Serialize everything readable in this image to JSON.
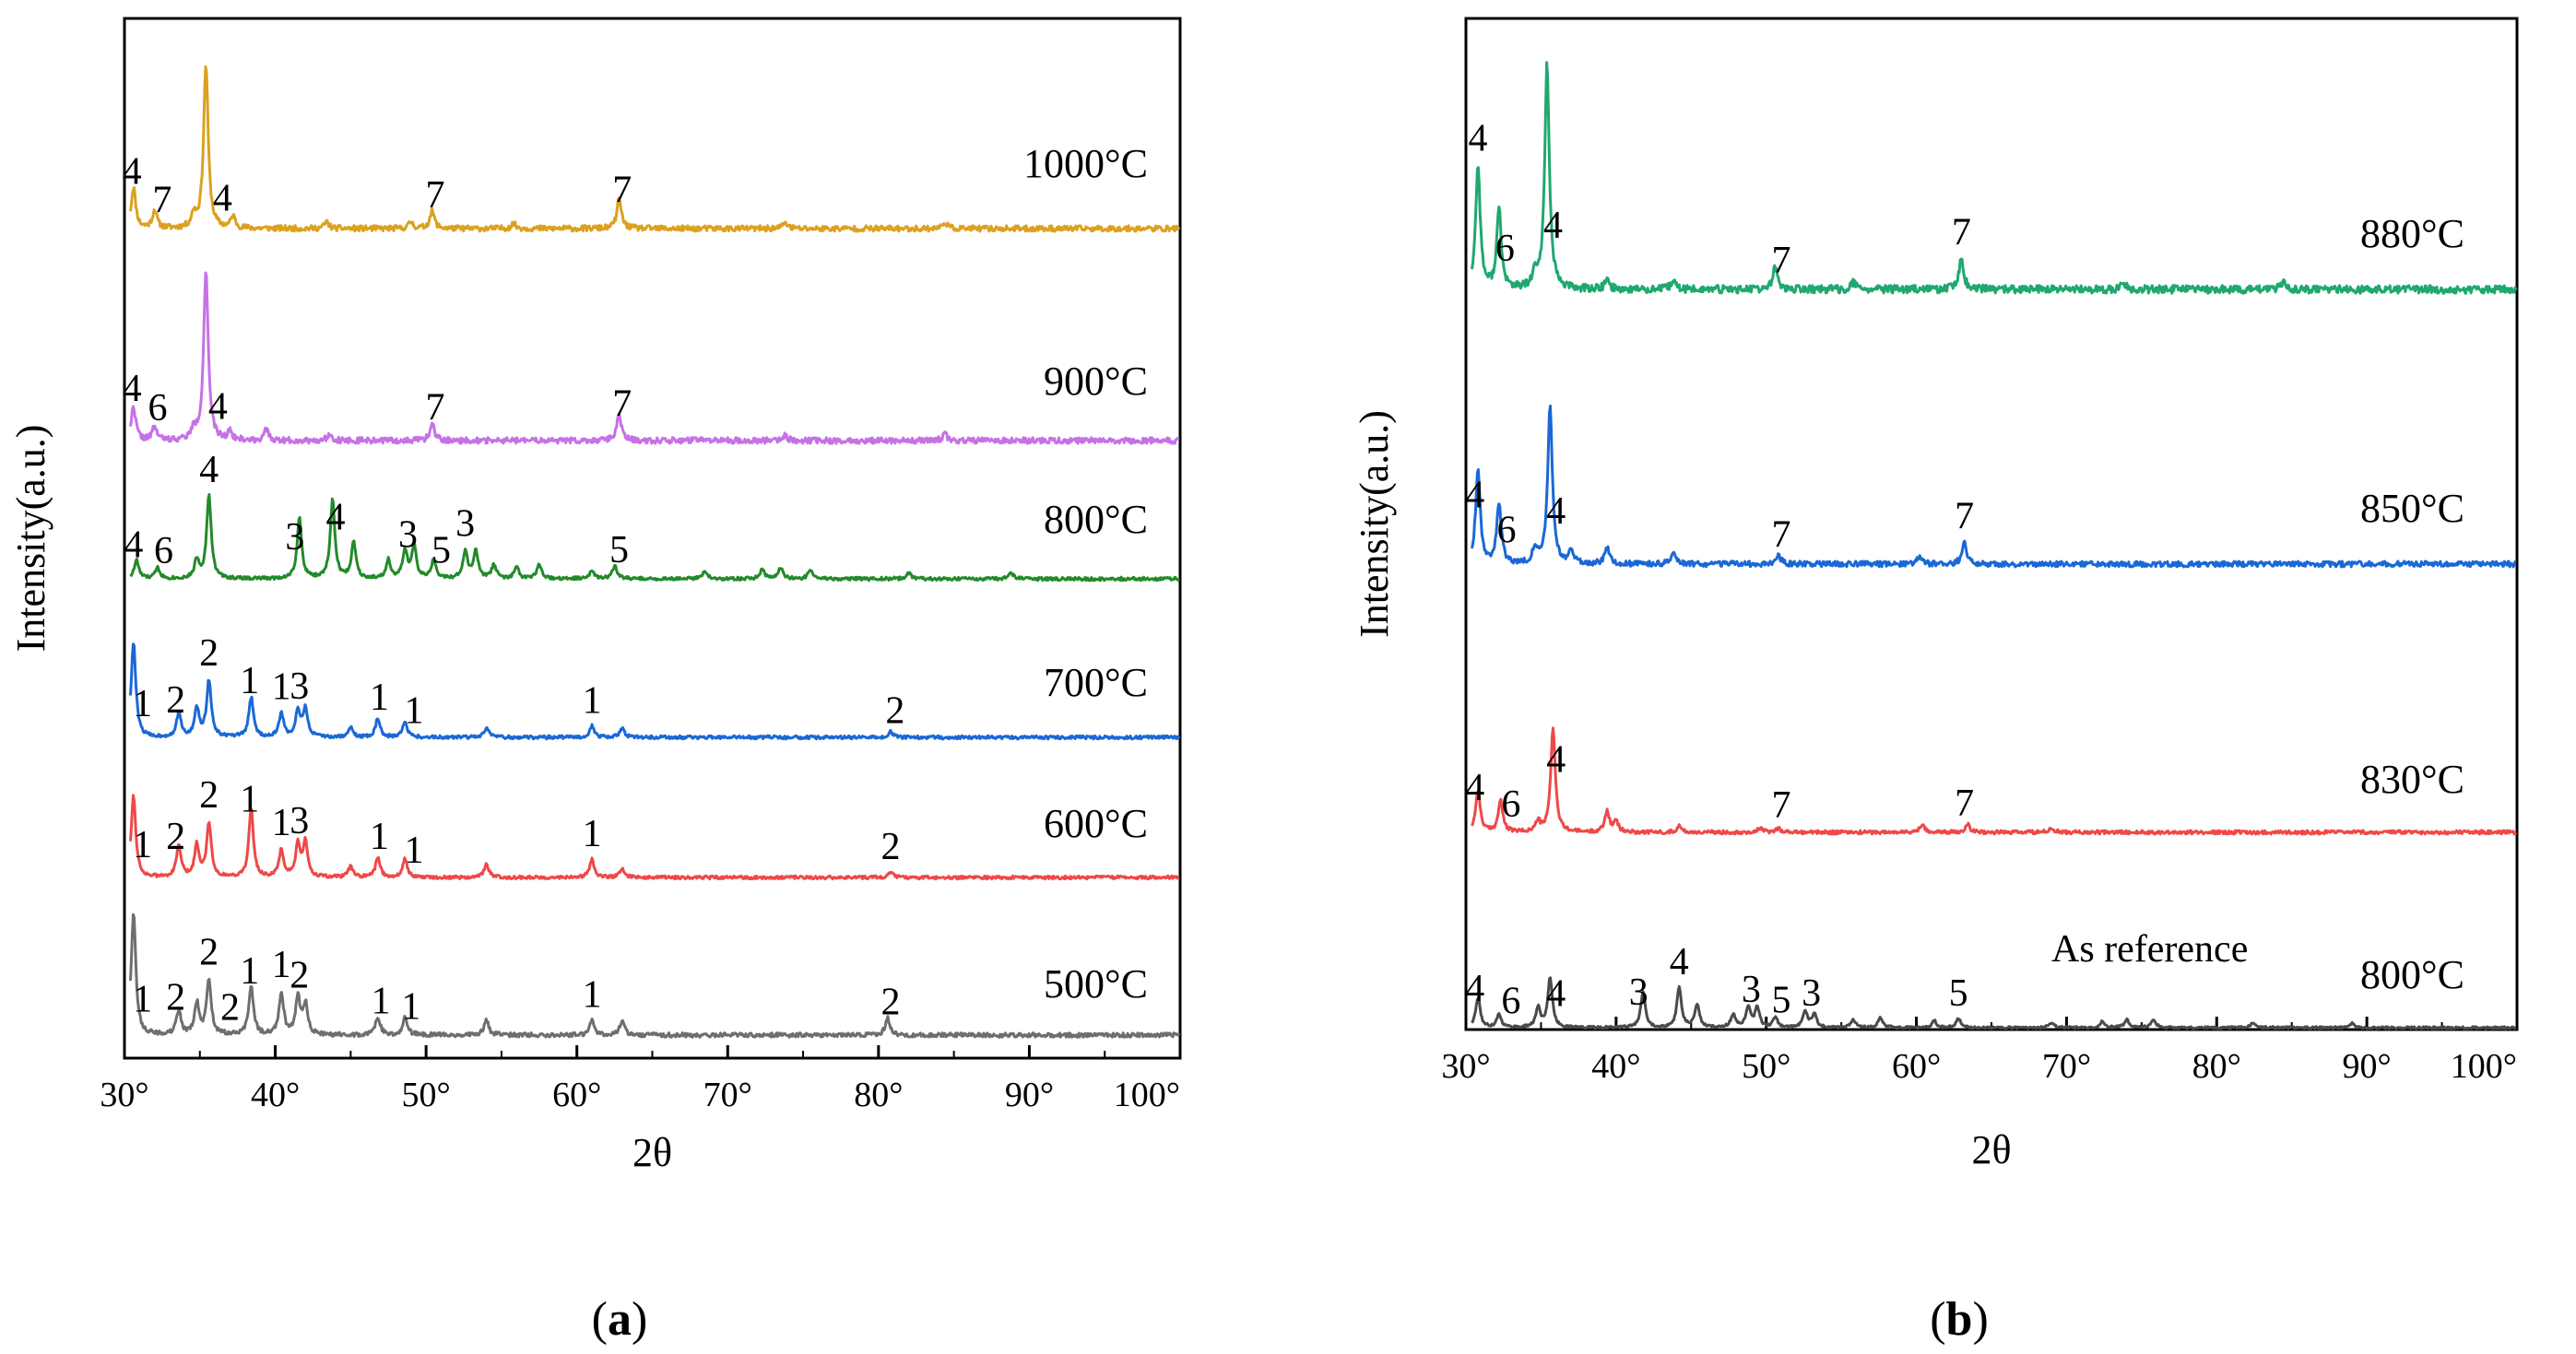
{
  "chart_data": [
    {
      "panel": "a",
      "type": "line",
      "caption_prefix": "(",
      "caption_letter": "a",
      "caption_suffix": ")",
      "xlabel": "2θ",
      "ylabel": "Intensity(a.u.)",
      "xlim": [
        30,
        100
      ],
      "xticks": [
        30,
        40,
        50,
        60,
        70,
        80,
        90,
        100
      ],
      "tick_suffix": "°",
      "series": [
        {
          "name": "1000°C",
          "color": "#dba11f",
          "seed": 11,
          "peaks": [
            [
              30.6,
              0.25
            ],
            [
              32.0,
              0.11
            ],
            [
              34.6,
              0.08
            ],
            [
              35.4,
              1.0
            ],
            [
              37.2,
              0.07
            ],
            [
              43.4,
              0.04
            ],
            [
              49.0,
              0.04
            ],
            [
              50.4,
              0.11
            ],
            [
              55.8,
              0.03
            ],
            [
              62.8,
              0.18
            ],
            [
              73.8,
              0.04
            ],
            [
              84.4,
              0.04
            ]
          ],
          "labels": [
            {
              "x": 30.5,
              "text": "4"
            },
            {
              "x": 32.5,
              "text": "7"
            },
            {
              "x": 36.5,
              "text": "4"
            },
            {
              "x": 50.6,
              "text": "7"
            },
            {
              "x": 63.0,
              "text": "7"
            }
          ]
        },
        {
          "name": "900°C",
          "color": "#c671e6",
          "seed": 22,
          "peaks": [
            [
              30.6,
              0.2
            ],
            [
              32.0,
              0.08
            ],
            [
              34.6,
              0.06
            ],
            [
              35.4,
              1.0
            ],
            [
              37.0,
              0.05
            ],
            [
              39.4,
              0.06
            ],
            [
              43.6,
              0.04
            ],
            [
              50.4,
              0.1
            ],
            [
              62.8,
              0.15
            ],
            [
              73.8,
              0.03
            ],
            [
              84.4,
              0.04
            ]
          ],
          "labels": [
            {
              "x": 30.5,
              "text": "4"
            },
            {
              "x": 32.2,
              "text": "6"
            },
            {
              "x": 36.2,
              "text": "4"
            },
            {
              "x": 50.6,
              "text": "7"
            },
            {
              "x": 63.0,
              "text": "7"
            }
          ]
        },
        {
          "name": "800°C",
          "color": "#238a2a",
          "seed": 33,
          "peaks": [
            [
              30.8,
              0.2
            ],
            [
              32.2,
              0.12
            ],
            [
              34.8,
              0.2
            ],
            [
              35.6,
              0.9
            ],
            [
              41.6,
              0.65
            ],
            [
              43.8,
              0.85
            ],
            [
              45.2,
              0.4
            ],
            [
              47.5,
              0.2
            ],
            [
              48.6,
              0.3
            ],
            [
              49.2,
              0.35
            ],
            [
              50.5,
              0.2
            ],
            [
              52.6,
              0.3
            ],
            [
              53.3,
              0.3
            ],
            [
              54.5,
              0.15
            ],
            [
              56.0,
              0.12
            ],
            [
              57.5,
              0.15
            ],
            [
              61.0,
              0.1
            ],
            [
              62.5,
              0.14
            ],
            [
              68.5,
              0.08
            ],
            [
              72.3,
              0.1
            ],
            [
              73.5,
              0.12
            ],
            [
              75.5,
              0.1
            ],
            [
              82.0,
              0.06
            ],
            [
              88.8,
              0.06
            ]
          ],
          "labels": [
            {
              "x": 30.6,
              "text": "4"
            },
            {
              "x": 32.6,
              "text": "6"
            },
            {
              "x": 35.6,
              "text": "4"
            },
            {
              "x": 41.3,
              "text": "3"
            },
            {
              "x": 44.0,
              "text": "4"
            },
            {
              "x": 48.8,
              "text": "3"
            },
            {
              "x": 51.0,
              "text": "5"
            },
            {
              "x": 52.6,
              "text": "3"
            },
            {
              "x": 62.8,
              "text": "5"
            }
          ]
        },
        {
          "name": "700°C",
          "color": "#1a68d6",
          "seed": 44,
          "peaks": [
            [
              30.6,
              1.0
            ],
            [
              33.6,
              0.25
            ],
            [
              34.8,
              0.3
            ],
            [
              35.6,
              0.6
            ],
            [
              38.4,
              0.42
            ],
            [
              40.4,
              0.25
            ],
            [
              41.5,
              0.28
            ],
            [
              42.0,
              0.3
            ],
            [
              45.0,
              0.1
            ],
            [
              46.8,
              0.2
            ],
            [
              48.6,
              0.17
            ],
            [
              54.0,
              0.1
            ],
            [
              61.0,
              0.12
            ],
            [
              63.0,
              0.1
            ],
            [
              80.8,
              0.06
            ]
          ],
          "labels": [
            {
              "x": 31.2,
              "text": "1"
            },
            {
              "x": 33.4,
              "text": "2"
            },
            {
              "x": 35.6,
              "text": "2"
            },
            {
              "x": 38.3,
              "text": "1"
            },
            {
              "x": 40.4,
              "text": "1"
            },
            {
              "x": 41.6,
              "text": "3"
            },
            {
              "x": 46.9,
              "text": "1"
            },
            {
              "x": 49.2,
              "text": "1"
            },
            {
              "x": 61.0,
              "text": "1"
            },
            {
              "x": 81.1,
              "text": "2"
            }
          ]
        },
        {
          "name": "600°C",
          "color": "#ef4848",
          "seed": 55,
          "peaks": [
            [
              30.6,
              0.9
            ],
            [
              33.6,
              0.35
            ],
            [
              34.8,
              0.35
            ],
            [
              35.6,
              0.6
            ],
            [
              38.4,
              0.75
            ],
            [
              40.4,
              0.3
            ],
            [
              41.5,
              0.35
            ],
            [
              42.0,
              0.38
            ],
            [
              45.0,
              0.12
            ],
            [
              46.8,
              0.22
            ],
            [
              48.6,
              0.2
            ],
            [
              54.0,
              0.15
            ],
            [
              61.0,
              0.2
            ],
            [
              63.0,
              0.1
            ],
            [
              80.8,
              0.06
            ]
          ],
          "labels": [
            {
              "x": 31.2,
              "text": "1"
            },
            {
              "x": 33.4,
              "text": "2"
            },
            {
              "x": 35.6,
              "text": "2"
            },
            {
              "x": 38.3,
              "text": "1"
            },
            {
              "x": 40.4,
              "text": "1"
            },
            {
              "x": 41.6,
              "text": "3"
            },
            {
              "x": 46.9,
              "text": "1"
            },
            {
              "x": 49.2,
              "text": "1"
            },
            {
              "x": 61.0,
              "text": "1"
            },
            {
              "x": 80.8,
              "text": "2"
            }
          ]
        },
        {
          "name": "500°C",
          "color": "#6e6e6e",
          "seed": 66,
          "peaks": [
            [
              30.6,
              1.0
            ],
            [
              33.6,
              0.2
            ],
            [
              34.8,
              0.25
            ],
            [
              35.6,
              0.45
            ],
            [
              38.4,
              0.4
            ],
            [
              40.4,
              0.35
            ],
            [
              41.5,
              0.3
            ],
            [
              42.0,
              0.25
            ],
            [
              46.8,
              0.15
            ],
            [
              48.6,
              0.15
            ],
            [
              54.0,
              0.12
            ],
            [
              61.0,
              0.12
            ],
            [
              63.0,
              0.12
            ],
            [
              80.6,
              0.14
            ]
          ],
          "labels": [
            {
              "x": 31.2,
              "text": "1"
            },
            {
              "x": 33.4,
              "text": "2"
            },
            {
              "x": 35.6,
              "text": "2"
            },
            {
              "x": 37.0,
              "text": "2"
            },
            {
              "x": 38.3,
              "text": "1"
            },
            {
              "x": 40.4,
              "text": "1"
            },
            {
              "x": 41.6,
              "text": "2"
            },
            {
              "x": 47.0,
              "text": "1"
            },
            {
              "x": 49.0,
              "text": "1"
            },
            {
              "x": 61.0,
              "text": "1"
            },
            {
              "x": 80.8,
              "text": "2"
            }
          ]
        }
      ]
    },
    {
      "panel": "b",
      "type": "line",
      "caption_prefix": "(",
      "caption_letter": "b",
      "caption_suffix": ")",
      "xlabel": "2θ",
      "ylabel": "Intensity(a.u.)",
      "xlim": [
        30,
        100
      ],
      "xticks": [
        30,
        40,
        50,
        60,
        70,
        80,
        90,
        100
      ],
      "tick_suffix": "°",
      "note": "As reference",
      "series": [
        {
          "name": "880°C",
          "color": "#1fa870",
          "seed": 77,
          "peaks": [
            [
              30.8,
              0.55
            ],
            [
              32.2,
              0.35
            ],
            [
              34.6,
              0.06
            ],
            [
              35.4,
              1.0
            ],
            [
              39.4,
              0.04
            ],
            [
              43.8,
              0.04
            ],
            [
              50.6,
              0.1
            ],
            [
              55.8,
              0.03
            ],
            [
              63.0,
              0.14
            ],
            [
              73.8,
              0.03
            ],
            [
              84.4,
              0.03
            ]
          ],
          "labels": [
            {
              "x": 30.8,
              "text": "4"
            },
            {
              "x": 32.6,
              "text": "6"
            },
            {
              "x": 35.8,
              "text": "4"
            },
            {
              "x": 51.0,
              "text": "7"
            },
            {
              "x": 63.0,
              "text": "7"
            }
          ]
        },
        {
          "name": "850°C",
          "color": "#1a68d6",
          "seed": 88,
          "peaks": [
            [
              30.8,
              0.6
            ],
            [
              32.2,
              0.38
            ],
            [
              34.6,
              0.1
            ],
            [
              35.6,
              1.0
            ],
            [
              37.0,
              0.08
            ],
            [
              39.4,
              0.1
            ],
            [
              43.8,
              0.06
            ],
            [
              50.8,
              0.06
            ],
            [
              60.2,
              0.05
            ],
            [
              63.2,
              0.14
            ]
          ],
          "labels": [
            {
              "x": 30.6,
              "text": "4"
            },
            {
              "x": 32.7,
              "text": "6"
            },
            {
              "x": 36.0,
              "text": "4"
            },
            {
              "x": 51.0,
              "text": "7"
            },
            {
              "x": 63.2,
              "text": "7"
            }
          ]
        },
        {
          "name": "830°C",
          "color": "#ef4848",
          "seed": 99,
          "peaks": [
            [
              30.8,
              0.4
            ],
            [
              32.3,
              0.3
            ],
            [
              34.8,
              0.1
            ],
            [
              35.8,
              1.0
            ],
            [
              39.4,
              0.2
            ],
            [
              40.0,
              0.1
            ],
            [
              44.2,
              0.06
            ],
            [
              49.6,
              0.04
            ],
            [
              50.8,
              0.04
            ],
            [
              60.4,
              0.08
            ],
            [
              63.4,
              0.08
            ],
            [
              69.0,
              0.04
            ]
          ],
          "labels": [
            {
              "x": 30.6,
              "text": "4"
            },
            {
              "x": 33.0,
              "text": "6"
            },
            {
              "x": 36.0,
              "text": "4"
            },
            {
              "x": 51.0,
              "text": "7"
            },
            {
              "x": 63.2,
              "text": "7"
            }
          ]
        },
        {
          "name": "800°C",
          "color": "#4a4a4a",
          "seed": 111,
          "peaks": [
            [
              30.8,
              0.45
            ],
            [
              32.2,
              0.2
            ],
            [
              34.8,
              0.3
            ],
            [
              35.6,
              0.75
            ],
            [
              41.8,
              0.55
            ],
            [
              44.2,
              0.6
            ],
            [
              45.4,
              0.35
            ],
            [
              47.8,
              0.2
            ],
            [
              48.8,
              0.3
            ],
            [
              49.4,
              0.3
            ],
            [
              50.6,
              0.15
            ],
            [
              52.6,
              0.25
            ],
            [
              53.2,
              0.2
            ],
            [
              55.8,
              0.12
            ],
            [
              57.6,
              0.15
            ],
            [
              61.2,
              0.1
            ],
            [
              62.8,
              0.14
            ],
            [
              69.0,
              0.08
            ],
            [
              72.4,
              0.1
            ],
            [
              74.0,
              0.12
            ],
            [
              75.8,
              0.12
            ],
            [
              82.4,
              0.07
            ],
            [
              89.0,
              0.07
            ]
          ],
          "labels": [
            {
              "x": 30.6,
              "text": "4"
            },
            {
              "x": 33.0,
              "text": "6"
            },
            {
              "x": 36.0,
              "text": "4"
            },
            {
              "x": 41.5,
              "text": "3"
            },
            {
              "x": 44.2,
              "text": "4"
            },
            {
              "x": 49.0,
              "text": "3"
            },
            {
              "x": 51.0,
              "text": "5"
            },
            {
              "x": 53.0,
              "text": "3"
            },
            {
              "x": 62.8,
              "text": "5"
            }
          ]
        }
      ]
    }
  ]
}
